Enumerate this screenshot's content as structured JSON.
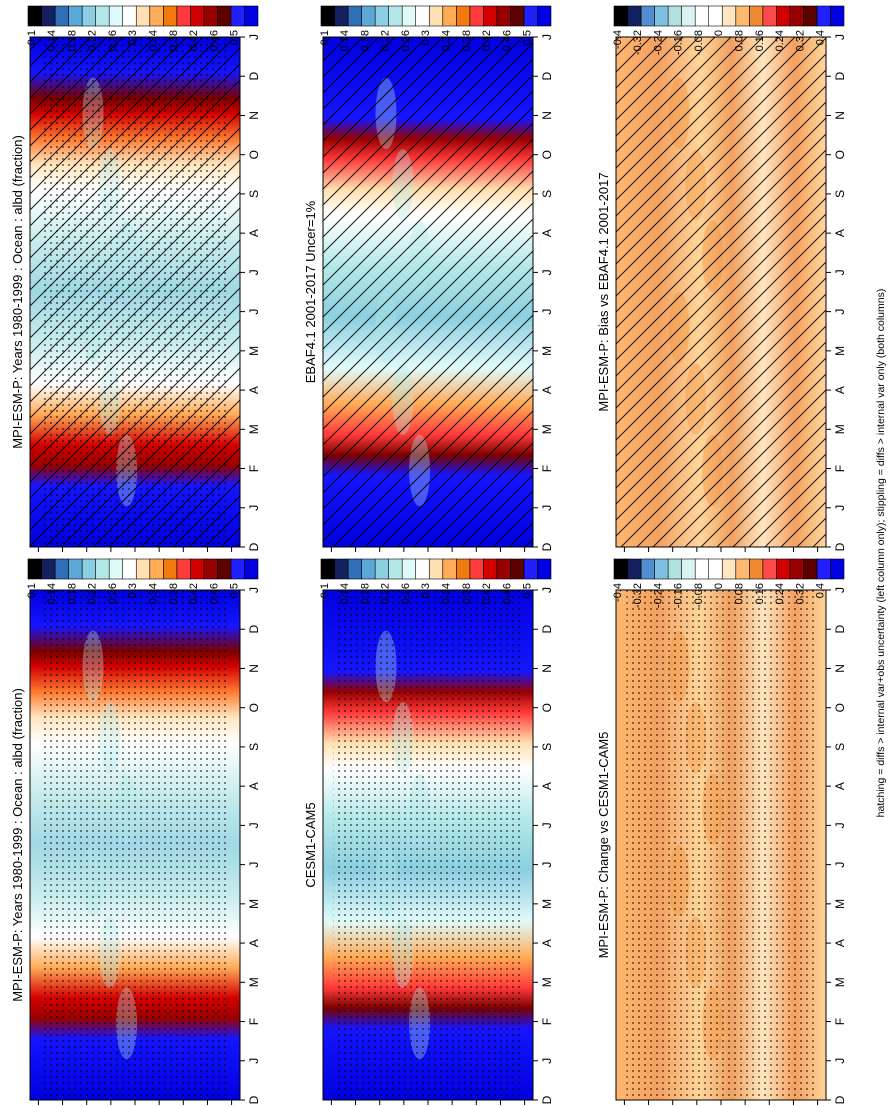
{
  "footer_text": "hatching = diffs > internal var+obs uncertainty (left column only); stippling = diffs > internal var only (both columns)",
  "colors": {
    "abs_scale": [
      "#0000e0",
      "#1f1fff",
      "#5c0000",
      "#990000",
      "#d40000",
      "#ff3a3a",
      "#f07a10",
      "#ffab57",
      "#ffe0b0",
      "#ffffff",
      "#e0fafa",
      "#b3e8e8",
      "#8ccfe0",
      "#5ba8d8",
      "#2f6fb8",
      "#15205f",
      "#000000"
    ],
    "diff_scale": [
      "#0000e0",
      "#1f1fff",
      "#5c0000",
      "#990000",
      "#d40000",
      "#ff4a4a",
      "#f08a30",
      "#ffb870",
      "#ffe6bf",
      "#ffffff",
      "#ffffff",
      "#d9f2f2",
      "#b0e0e0",
      "#7fbfe0",
      "#4f8fd0",
      "#15205f",
      "#000000"
    ]
  },
  "chart_data": [
    {
      "type": "heatmap",
      "title": "MPI-ESM-P: Years 1980-1999 : Ocean : albd (fraction)",
      "x_tick_labels": [
        "D",
        "J",
        "F",
        "M",
        "A",
        "M",
        "J",
        "J",
        "A",
        "S",
        "O",
        "N",
        "D",
        "J"
      ],
      "y_tick_labels": [
        "80",
        "60",
        "°N",
        "20",
        "0",
        "20",
        "°S",
        "60",
        "80"
      ],
      "colorbar_labels": [
        "0.5",
        "0.46",
        "0.42",
        "0.38",
        "0.34",
        "0.3",
        "0.26",
        "0.22",
        "0.18",
        "0.14",
        "0.1"
      ],
      "value_range": [
        0.1,
        0.5
      ],
      "overlay": "hatching+stippling"
    },
    {
      "type": "heatmap",
      "title": "MPI-ESM-P: Years 1980-1999 : Ocean : albd (fraction)",
      "x_tick_labels": [
        "D",
        "J",
        "F",
        "M",
        "A",
        "M",
        "J",
        "J",
        "A",
        "S",
        "O",
        "N",
        "D",
        "J"
      ],
      "y_tick_labels": [
        "80",
        "60",
        "°N",
        "20",
        "0",
        "20",
        "°S",
        "60",
        "80"
      ],
      "colorbar_labels": [
        "0.5",
        "0.46",
        "0.42",
        "0.38",
        "0.34",
        "0.3",
        "0.26",
        "0.22",
        "0.18",
        "0.14",
        "0.1"
      ],
      "value_range": [
        0.1,
        0.5
      ],
      "overlay": "stippling"
    },
    {
      "type": "heatmap",
      "title": "EBAF4.1 2001-2017 Uncer=1%",
      "x_tick_labels": [
        "D",
        "J",
        "F",
        "M",
        "A",
        "M",
        "J",
        "J",
        "A",
        "S",
        "O",
        "N",
        "D",
        "J"
      ],
      "y_tick_labels": [
        "80",
        "60",
        "°N",
        "20",
        "0",
        "20",
        "°S",
        "60",
        "80"
      ],
      "colorbar_labels": [
        "0.5",
        "0.46",
        "0.42",
        "0.38",
        "0.34",
        "0.3",
        "0.26",
        "0.22",
        "0.18",
        "0.14",
        "0.1"
      ],
      "value_range": [
        0.1,
        0.5
      ],
      "overlay": "hatching"
    },
    {
      "type": "heatmap",
      "title": "CESM1-CAM5",
      "x_tick_labels": [
        "D",
        "J",
        "F",
        "M",
        "A",
        "M",
        "J",
        "J",
        "A",
        "S",
        "O",
        "N",
        "D",
        "J"
      ],
      "y_tick_labels": [
        "80",
        "60",
        "°N",
        "20",
        "0",
        "20",
        "°S",
        "60",
        "80"
      ],
      "colorbar_labels": [
        "0.5",
        "0.46",
        "0.42",
        "0.38",
        "0.34",
        "0.3",
        "0.26",
        "0.22",
        "0.18",
        "0.14",
        "0.1"
      ],
      "value_range": [
        0.1,
        0.5
      ],
      "overlay": "stippling"
    },
    {
      "type": "heatmap",
      "title": "MPI-ESM-P: Bias vs EBAF4.1 2001-2017",
      "x_tick_labels": [
        "D",
        "J",
        "F",
        "M",
        "A",
        "M",
        "J",
        "J",
        "A",
        "S",
        "O",
        "N",
        "D",
        "J"
      ],
      "y_tick_labels": [
        "80",
        "60",
        "°N",
        "20",
        "0",
        "20",
        "°S",
        "60",
        "80"
      ],
      "colorbar_labels": [
        "0.4",
        "0.32",
        "0.24",
        "0.16",
        "0.08",
        "0",
        "-0.08",
        "-0.16",
        "-0.24",
        "-0.32",
        "-0.4"
      ],
      "value_range": [
        -0.4,
        0.4
      ],
      "overlay": "hatching"
    },
    {
      "type": "heatmap",
      "title": "MPI-ESM-P: Change vs CESM1-CAM5",
      "x_tick_labels": [
        "D",
        "J",
        "F",
        "M",
        "A",
        "M",
        "J",
        "J",
        "A",
        "S",
        "O",
        "N",
        "D",
        "J"
      ],
      "y_tick_labels": [
        "80",
        "60",
        "°N",
        "20",
        "0",
        "20",
        "°S",
        "60",
        "80"
      ],
      "colorbar_labels": [
        "0.4",
        "0.32",
        "0.24",
        "0.16",
        "0.08",
        "0",
        "-0.08",
        "-0.16",
        "-0.24",
        "-0.32",
        "-0.4"
      ],
      "value_range": [
        -0.4,
        0.4
      ],
      "overlay": "stippling"
    }
  ]
}
